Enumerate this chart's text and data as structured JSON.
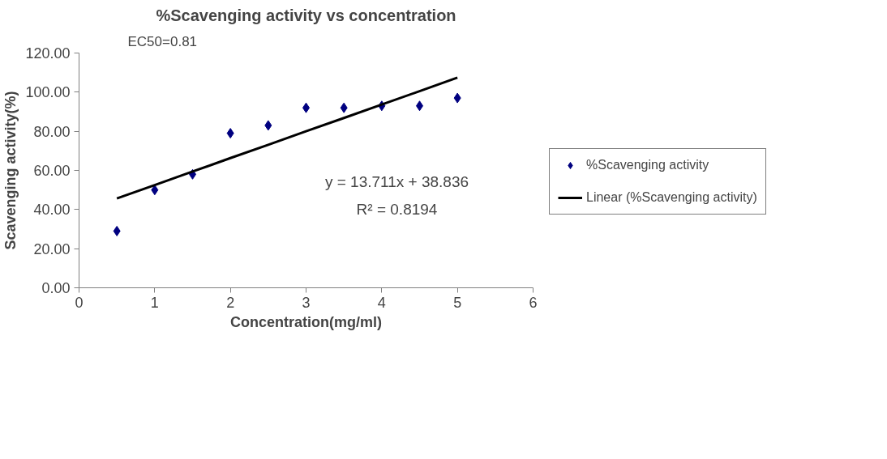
{
  "chart_data": {
    "type": "scatter",
    "title": "%Scavenging activity vs concentration",
    "xlabel": "Concentration(mg/ml)",
    "ylabel": "Scavenging activity(%)",
    "x": [
      0.5,
      1,
      1.5,
      2,
      2.5,
      3,
      3.5,
      4,
      4.5,
      5
    ],
    "series": [
      {
        "name": "%Scavenging activity",
        "type": "scatter",
        "color": "#000080",
        "marker": "diamond",
        "values": [
          29,
          50,
          58,
          79,
          83,
          92,
          92,
          93,
          93,
          97
        ]
      },
      {
        "name": "Linear (%Scavenging activity)",
        "type": "line",
        "color": "#000000",
        "marker": "none",
        "values": [
          45.7,
          52.5,
          59.4,
          66.3,
          73.1,
          80.0,
          86.8,
          93.7,
          100.5,
          107.4
        ]
      }
    ],
    "xlim": [
      0,
      6
    ],
    "xticks": [
      0,
      1,
      2,
      3,
      4,
      5,
      6
    ],
    "ylim": [
      0,
      120
    ],
    "yticks": [
      {
        "value": 0,
        "label": "0.00"
      },
      {
        "value": 20,
        "label": "20.00"
      },
      {
        "value": 40,
        "label": "40.00"
      },
      {
        "value": 60,
        "label": "60.00"
      },
      {
        "value": 80,
        "label": "80.00"
      },
      {
        "value": 100,
        "label": "100.00"
      },
      {
        "value": 120,
        "label": "120.00"
      }
    ],
    "grid": false,
    "legend": "right",
    "annotations": [
      "EC50=0.81",
      "y = 13.711x + 38.836",
      "R² = 0.8194"
    ]
  }
}
